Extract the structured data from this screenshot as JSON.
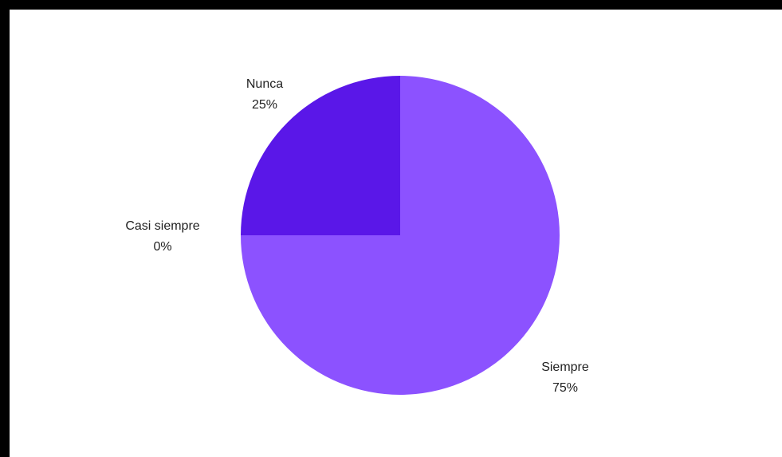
{
  "chart_data": {
    "type": "pie",
    "title": "",
    "slices": [
      {
        "label": "Siempre",
        "value": 75,
        "percent_label": "75%",
        "color": "#8c52ff"
      },
      {
        "label": "Casi siempre",
        "value": 0,
        "percent_label": "0%",
        "color": "#7a3cf5"
      },
      {
        "label": "Nunca",
        "value": 25,
        "percent_label": "25%",
        "color": "#5a17e8"
      }
    ],
    "start_angle_deg": 0,
    "direction": "clockwise",
    "legend": "none",
    "labels": "outside"
  }
}
